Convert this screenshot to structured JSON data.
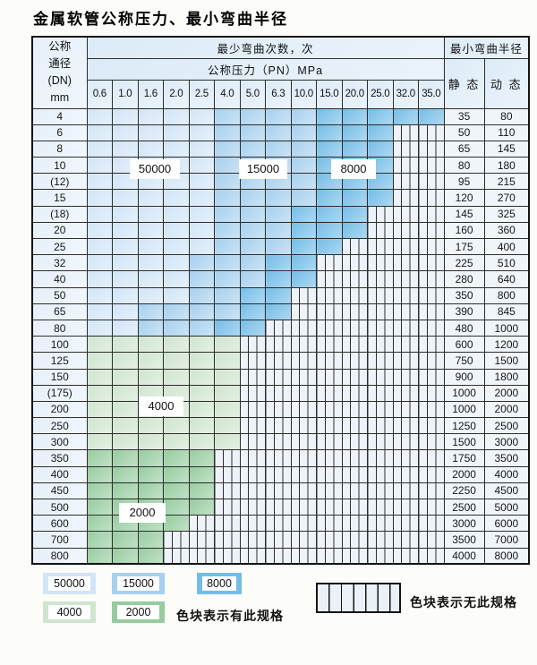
{
  "title": "金属软管公称压力、最小弯曲半径",
  "table": {
    "header": {
      "dn_lines": [
        "公称",
        "通径",
        "(DN)",
        "mm"
      ],
      "cycles_title": "最少弯曲次数，次",
      "pressure_title": "公称压力（PN）MPa",
      "radius_title": "最小弯曲半径",
      "static_label": "静 态",
      "dynamic_label": "动 态",
      "pressure_cols": [
        "0.6",
        "1.0",
        "1.6",
        "2.0",
        "2.5",
        "4.0",
        "5.0",
        "6.3",
        "10.0",
        "15.0",
        "20.0",
        "25.0",
        "32.0",
        "35.0"
      ]
    },
    "cycle_labels": {
      "l50000": "50000",
      "l15000": "15000",
      "l8000": "8000",
      "l4000": "4000",
      "l2000": "2000"
    },
    "rows": [
      {
        "dn": "4",
        "static": "35",
        "dynamic": "80",
        "bands": [
          [
            "b50",
            0,
            4
          ],
          [
            "b15",
            5,
            8
          ],
          [
            "b8",
            9,
            13
          ]
        ],
        "hatch_from": 14
      },
      {
        "dn": "6",
        "static": "50",
        "dynamic": "110",
        "bands": [
          [
            "b50",
            0,
            4
          ],
          [
            "b15",
            5,
            8
          ],
          [
            "b8",
            9,
            11
          ]
        ],
        "hatch_from": 12
      },
      {
        "dn": "8",
        "static": "65",
        "dynamic": "145",
        "bands": [
          [
            "b50",
            0,
            4
          ],
          [
            "b15",
            5,
            8
          ],
          [
            "b8",
            9,
            11
          ]
        ],
        "hatch_from": 12
      },
      {
        "dn": "10",
        "static": "80",
        "dynamic": "180",
        "bands": [
          [
            "b50",
            0,
            4
          ],
          [
            "b15",
            5,
            8
          ],
          [
            "b8",
            9,
            11
          ]
        ],
        "hatch_from": 12
      },
      {
        "dn": "(12)",
        "static": "95",
        "dynamic": "215",
        "bands": [
          [
            "b50",
            0,
            4
          ],
          [
            "b15",
            5,
            8
          ],
          [
            "b8",
            9,
            11
          ]
        ],
        "hatch_from": 12
      },
      {
        "dn": "15",
        "static": "120",
        "dynamic": "270",
        "bands": [
          [
            "b50",
            0,
            4
          ],
          [
            "b15",
            5,
            8
          ],
          [
            "b8",
            9,
            11
          ]
        ],
        "hatch_from": 12
      },
      {
        "dn": "(18)",
        "static": "145",
        "dynamic": "325",
        "bands": [
          [
            "b50",
            0,
            4
          ],
          [
            "b15",
            5,
            7
          ],
          [
            "b8",
            8,
            10
          ]
        ],
        "hatch_from": 11
      },
      {
        "dn": "20",
        "static": "160",
        "dynamic": "360",
        "bands": [
          [
            "b50",
            0,
            4
          ],
          [
            "b15",
            5,
            7
          ],
          [
            "b8",
            8,
            10
          ]
        ],
        "hatch_from": 11
      },
      {
        "dn": "25",
        "static": "175",
        "dynamic": "400",
        "bands": [
          [
            "b50",
            0,
            4
          ],
          [
            "b15",
            5,
            7
          ],
          [
            "b8",
            8,
            9
          ]
        ],
        "hatch_from": 10
      },
      {
        "dn": "32",
        "static": "225",
        "dynamic": "510",
        "bands": [
          [
            "b50",
            0,
            3
          ],
          [
            "b15",
            4,
            6
          ],
          [
            "b8",
            7,
            8
          ]
        ],
        "hatch_from": 9
      },
      {
        "dn": "40",
        "static": "280",
        "dynamic": "640",
        "bands": [
          [
            "b50",
            0,
            3
          ],
          [
            "b15",
            4,
            6
          ],
          [
            "b8",
            7,
            8
          ]
        ],
        "hatch_from": 9
      },
      {
        "dn": "50",
        "static": "350",
        "dynamic": "800",
        "bands": [
          [
            "b50",
            0,
            3
          ],
          [
            "b15",
            4,
            5
          ],
          [
            "b8",
            6,
            7
          ]
        ],
        "hatch_from": 8
      },
      {
        "dn": "65",
        "static": "390",
        "dynamic": "845",
        "bands": [
          [
            "b50",
            0,
            1
          ],
          [
            "b15",
            2,
            5
          ],
          [
            "b8",
            6,
            7
          ]
        ],
        "hatch_from": 8
      },
      {
        "dn": "80",
        "static": "480",
        "dynamic": "1000",
        "bands": [
          [
            "b50",
            0,
            1
          ],
          [
            "b15",
            2,
            4
          ],
          [
            "b8",
            5,
            6
          ]
        ],
        "hatch_from": 7
      },
      {
        "dn": "100",
        "static": "600",
        "dynamic": "1200",
        "bands": [
          [
            "g4",
            0,
            5
          ]
        ],
        "hatch_from": 6
      },
      {
        "dn": "125",
        "static": "750",
        "dynamic": "1500",
        "bands": [
          [
            "g4",
            0,
            5
          ]
        ],
        "hatch_from": 6
      },
      {
        "dn": "150",
        "static": "900",
        "dynamic": "1800",
        "bands": [
          [
            "g4",
            0,
            5
          ]
        ],
        "hatch_from": 6
      },
      {
        "dn": "(175)",
        "static": "1000",
        "dynamic": "2000",
        "bands": [
          [
            "g4",
            0,
            5
          ]
        ],
        "hatch_from": 6
      },
      {
        "dn": "200",
        "static": "1000",
        "dynamic": "2000",
        "bands": [
          [
            "g4",
            0,
            5
          ]
        ],
        "hatch_from": 6
      },
      {
        "dn": "250",
        "static": "1250",
        "dynamic": "2500",
        "bands": [
          [
            "g4",
            0,
            5
          ]
        ],
        "hatch_from": 6
      },
      {
        "dn": "300",
        "static": "1500",
        "dynamic": "3000",
        "bands": [
          [
            "g4",
            0,
            5
          ]
        ],
        "hatch_from": 6
      },
      {
        "dn": "350",
        "static": "1750",
        "dynamic": "3500",
        "bands": [
          [
            "g2",
            0,
            4
          ]
        ],
        "hatch_from": 5
      },
      {
        "dn": "400",
        "static": "2000",
        "dynamic": "4000",
        "bands": [
          [
            "g2",
            0,
            4
          ]
        ],
        "hatch_from": 5
      },
      {
        "dn": "450",
        "static": "2250",
        "dynamic": "4500",
        "bands": [
          [
            "g2",
            0,
            4
          ]
        ],
        "hatch_from": 5
      },
      {
        "dn": "500",
        "static": "2500",
        "dynamic": "5000",
        "bands": [
          [
            "g2",
            0,
            4
          ]
        ],
        "hatch_from": 5
      },
      {
        "dn": "600",
        "static": "3000",
        "dynamic": "6000",
        "bands": [
          [
            "g2",
            0,
            3
          ]
        ],
        "hatch_from": 4
      },
      {
        "dn": "700",
        "static": "3500",
        "dynamic": "7000",
        "bands": [
          [
            "g2",
            0,
            2
          ]
        ],
        "hatch_from": 3
      },
      {
        "dn": "800",
        "static": "4000",
        "dynamic": "8000",
        "bands": [
          [
            "g2",
            0,
            2
          ]
        ],
        "hatch_from": 3
      }
    ]
  },
  "legend": {
    "swatches": [
      {
        "label": "50000",
        "band": "b50"
      },
      {
        "label": "15000",
        "band": "b15"
      },
      {
        "label": "8000",
        "band": "b8"
      },
      {
        "label": "4000",
        "band": "g4"
      },
      {
        "label": "2000",
        "band": "g2"
      }
    ],
    "has_spec_text": "色块表示有此规格",
    "no_spec_text": "色块表示无此规格"
  },
  "colors": {
    "blue_50000": "#d2e5f6",
    "blue_15000": "#a6d0ee",
    "blue_8000": "#74bde7",
    "green_4000": "#d0e5ce",
    "green_2000": "#96cc9f",
    "hatch_bg": "#eef3f9",
    "grid_line": "#2e2e2e",
    "header_bg": "#dcebf8",
    "dn_bg": "#e6f0fa",
    "value_bg": "#f0f5fa"
  }
}
